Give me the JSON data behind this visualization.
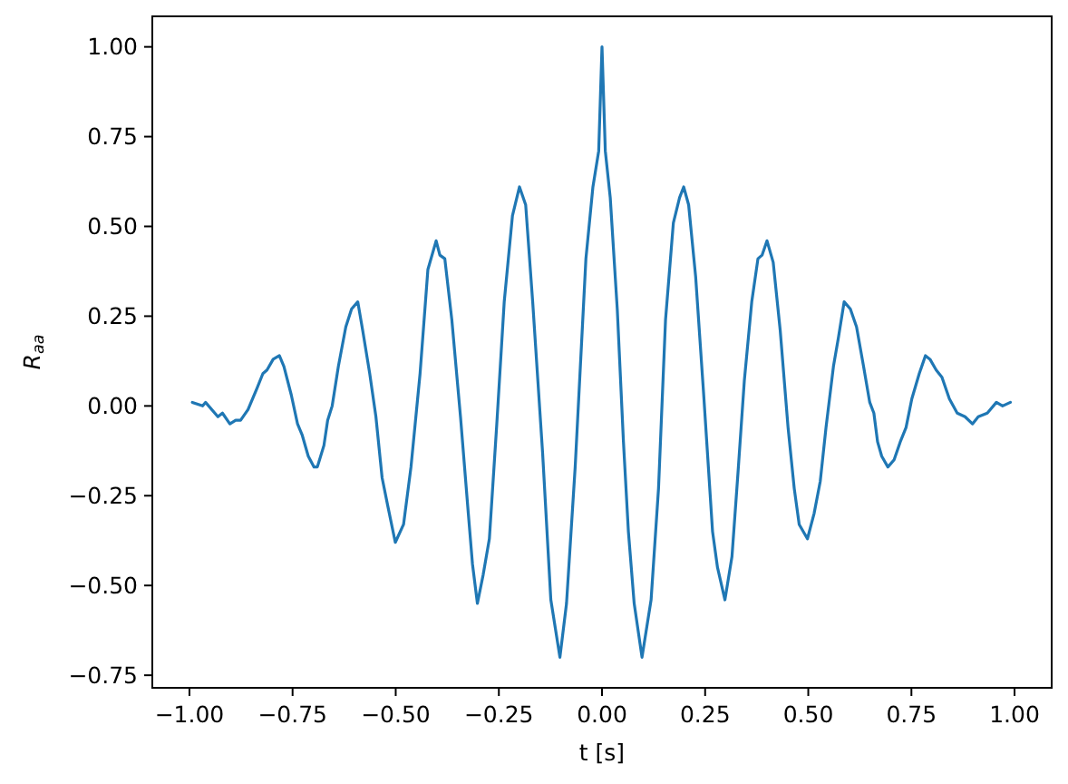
{
  "chart_data": {
    "type": "line",
    "xlabel": "t [s]",
    "ylabel": "R$_{aa}$",
    "x": [
      -0.993,
      -0.968,
      -0.961,
      -0.931,
      -0.92,
      -0.902,
      -0.888,
      -0.876,
      -0.858,
      -0.836,
      -0.822,
      -0.812,
      -0.797,
      -0.782,
      -0.771,
      -0.753,
      -0.738,
      -0.727,
      -0.712,
      -0.698,
      -0.69,
      -0.674,
      -0.665,
      -0.654,
      -0.639,
      -0.621,
      -0.607,
      -0.592,
      -0.58,
      -0.563,
      -0.548,
      -0.533,
      -0.519,
      -0.501,
      -0.481,
      -0.463,
      -0.441,
      -0.422,
      -0.402,
      -0.393,
      -0.381,
      -0.364,
      -0.343,
      -0.324,
      -0.314,
      -0.302,
      -0.288,
      -0.273,
      -0.255,
      -0.237,
      -0.217,
      -0.2,
      -0.185,
      -0.168,
      -0.144,
      -0.124,
      -0.102,
      -0.086,
      -0.065,
      -0.039,
      -0.022,
      -0.008,
      0,
      0.008,
      0.02,
      0.037,
      0.052,
      0.064,
      0.078,
      0.097,
      0.119,
      0.137,
      0.154,
      0.173,
      0.188,
      0.198,
      0.21,
      0.227,
      0.246,
      0.268,
      0.28,
      0.298,
      0.315,
      0.33,
      0.345,
      0.363,
      0.378,
      0.388,
      0.4,
      0.415,
      0.432,
      0.451,
      0.466,
      0.478,
      0.498,
      0.514,
      0.529,
      0.543,
      0.561,
      0.573,
      0.587,
      0.602,
      0.617,
      0.634,
      0.649,
      0.659,
      0.668,
      0.678,
      0.693,
      0.708,
      0.723,
      0.737,
      0.751,
      0.769,
      0.784,
      0.795,
      0.81,
      0.824,
      0.842,
      0.861,
      0.88,
      0.898,
      0.912,
      0.934,
      0.956,
      0.971,
      0.99
    ],
    "series": [
      {
        "color": "#1f77b4",
        "values": [
          0.01,
          0.0,
          0.01,
          -0.03,
          -0.02,
          -0.05,
          -0.04,
          -0.04,
          -0.01,
          0.05,
          0.09,
          0.1,
          0.13,
          0.14,
          0.11,
          0.03,
          -0.05,
          -0.08,
          -0.14,
          -0.17,
          -0.17,
          -0.11,
          -0.04,
          0.0,
          0.11,
          0.22,
          0.27,
          0.29,
          0.21,
          0.09,
          -0.03,
          -0.2,
          -0.28,
          -0.38,
          -0.33,
          -0.17,
          0.09,
          0.38,
          0.46,
          0.42,
          0.41,
          0.24,
          -0.03,
          -0.3,
          -0.44,
          -0.55,
          -0.47,
          -0.37,
          -0.05,
          0.29,
          0.53,
          0.61,
          0.56,
          0.29,
          -0.13,
          -0.54,
          -0.7,
          -0.55,
          -0.17,
          0.41,
          0.61,
          0.71,
          1.0,
          0.71,
          0.58,
          0.27,
          -0.1,
          -0.35,
          -0.55,
          -0.7,
          -0.54,
          -0.23,
          0.24,
          0.51,
          0.58,
          0.61,
          0.56,
          0.36,
          0.04,
          -0.35,
          -0.45,
          -0.54,
          -0.42,
          -0.18,
          0.07,
          0.29,
          0.41,
          0.42,
          0.46,
          0.4,
          0.21,
          -0.06,
          -0.23,
          -0.33,
          -0.37,
          -0.3,
          -0.21,
          -0.06,
          0.11,
          0.19,
          0.29,
          0.27,
          0.22,
          0.11,
          0.01,
          -0.02,
          -0.1,
          -0.14,
          -0.17,
          -0.15,
          -0.1,
          -0.06,
          0.02,
          0.09,
          0.14,
          0.13,
          0.1,
          0.08,
          0.02,
          -0.02,
          -0.03,
          -0.05,
          -0.03,
          -0.02,
          0.01,
          0.0,
          0.01
        ]
      }
    ],
    "xlim": [
      -1.09,
      1.09
    ],
    "ylim": [
      -0.785,
      1.085
    ],
    "xticks": [
      {
        "value": -1,
        "label": "−1.00"
      },
      {
        "value": -0.75,
        "label": "−0.75"
      },
      {
        "value": -0.5,
        "label": "−0.50"
      },
      {
        "value": -0.25,
        "label": "−0.25"
      },
      {
        "value": 0,
        "label": "0.00"
      },
      {
        "value": 0.25,
        "label": "0.25"
      },
      {
        "value": 0.5,
        "label": "0.50"
      },
      {
        "value": 0.75,
        "label": "0.75"
      },
      {
        "value": 1,
        "label": "1.00"
      }
    ],
    "yticks": [
      {
        "value": -0.75,
        "label": "−0.75"
      },
      {
        "value": -0.5,
        "label": "−0.50"
      },
      {
        "value": -0.25,
        "label": "−0.25"
      },
      {
        "value": 0,
        "label": "0.00"
      },
      {
        "value": 0.25,
        "label": "0.25"
      },
      {
        "value": 0.5,
        "label": "0.50"
      },
      {
        "value": 0.75,
        "label": "0.75"
      },
      {
        "value": 1,
        "label": "1.00"
      }
    ]
  }
}
